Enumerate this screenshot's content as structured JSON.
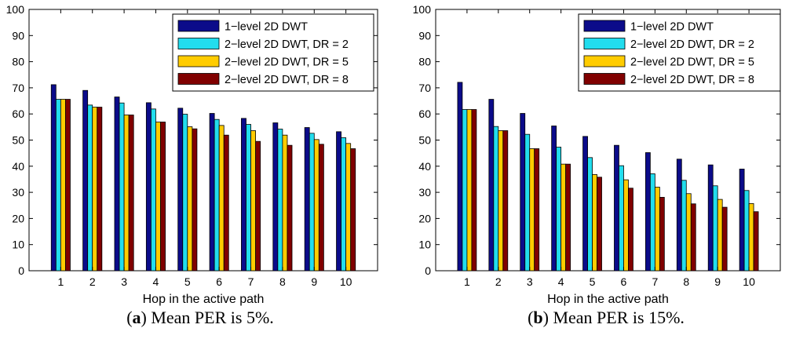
{
  "colors": {
    "series": [
      "#0b0b8a",
      "#22ddee",
      "#ffcc00",
      "#800000"
    ],
    "axis": "#000000",
    "background": "#ffffff"
  },
  "chart_data": [
    {
      "type": "bar",
      "caption_letter": "a",
      "caption_text": "Mean PER is 5%.",
      "xlabel": "Hop in the active path",
      "ylabel": "",
      "ylim": [
        0,
        100
      ],
      "yticks": [
        0,
        10,
        20,
        30,
        40,
        50,
        60,
        70,
        80,
        90,
        100
      ],
      "categories": [
        "1",
        "2",
        "3",
        "4",
        "5",
        "6",
        "7",
        "8",
        "9",
        "10"
      ],
      "legend_position": "top-right",
      "series": [
        {
          "name": "1−level 2D DWT",
          "values": [
            71.2,
            69.0,
            66.5,
            64.3,
            62.2,
            60.2,
            58.3,
            56.6,
            54.8,
            53.2
          ]
        },
        {
          "name": "2−level 2D DWT, DR = 2",
          "values": [
            65.6,
            63.4,
            64.2,
            61.9,
            59.9,
            57.9,
            56.0,
            54.2,
            52.6,
            50.9
          ]
        },
        {
          "name": "2−level 2D DWT, DR = 5",
          "values": [
            65.6,
            62.6,
            59.6,
            56.9,
            55.1,
            55.6,
            53.6,
            51.9,
            50.2,
            48.7
          ]
        },
        {
          "name": "2−level 2D DWT, DR = 8",
          "values": [
            65.6,
            62.6,
            59.6,
            56.9,
            54.3,
            51.9,
            49.5,
            48.0,
            48.4,
            46.7
          ]
        }
      ]
    },
    {
      "type": "bar",
      "caption_letter": "b",
      "caption_text": "Mean PER is 15%.",
      "xlabel": "Hop in the active path",
      "ylabel": "",
      "ylim": [
        0,
        100
      ],
      "yticks": [
        0,
        10,
        20,
        30,
        40,
        50,
        60,
        70,
        80,
        90,
        100
      ],
      "categories": [
        "1",
        "2",
        "3",
        "4",
        "5",
        "6",
        "7",
        "8",
        "9",
        "10"
      ],
      "legend_position": "top-right",
      "series": [
        {
          "name": "1−level 2D DWT",
          "values": [
            72.1,
            65.6,
            60.2,
            55.4,
            51.4,
            48.0,
            45.2,
            42.7,
            40.5,
            38.9
          ]
        },
        {
          "name": "2−level 2D DWT, DR = 2",
          "values": [
            61.7,
            55.2,
            52.2,
            47.3,
            43.3,
            40.2,
            37.1,
            34.6,
            32.5,
            30.7
          ]
        },
        {
          "name": "2−level 2D DWT, DR = 5",
          "values": [
            61.7,
            53.6,
            46.7,
            40.8,
            36.8,
            34.8,
            32.0,
            29.5,
            27.3,
            25.7
          ]
        },
        {
          "name": "2−level 2D DWT, DR = 8",
          "values": [
            61.7,
            53.6,
            46.7,
            40.8,
            35.8,
            31.6,
            28.1,
            25.6,
            24.3,
            22.6
          ]
        }
      ]
    }
  ]
}
